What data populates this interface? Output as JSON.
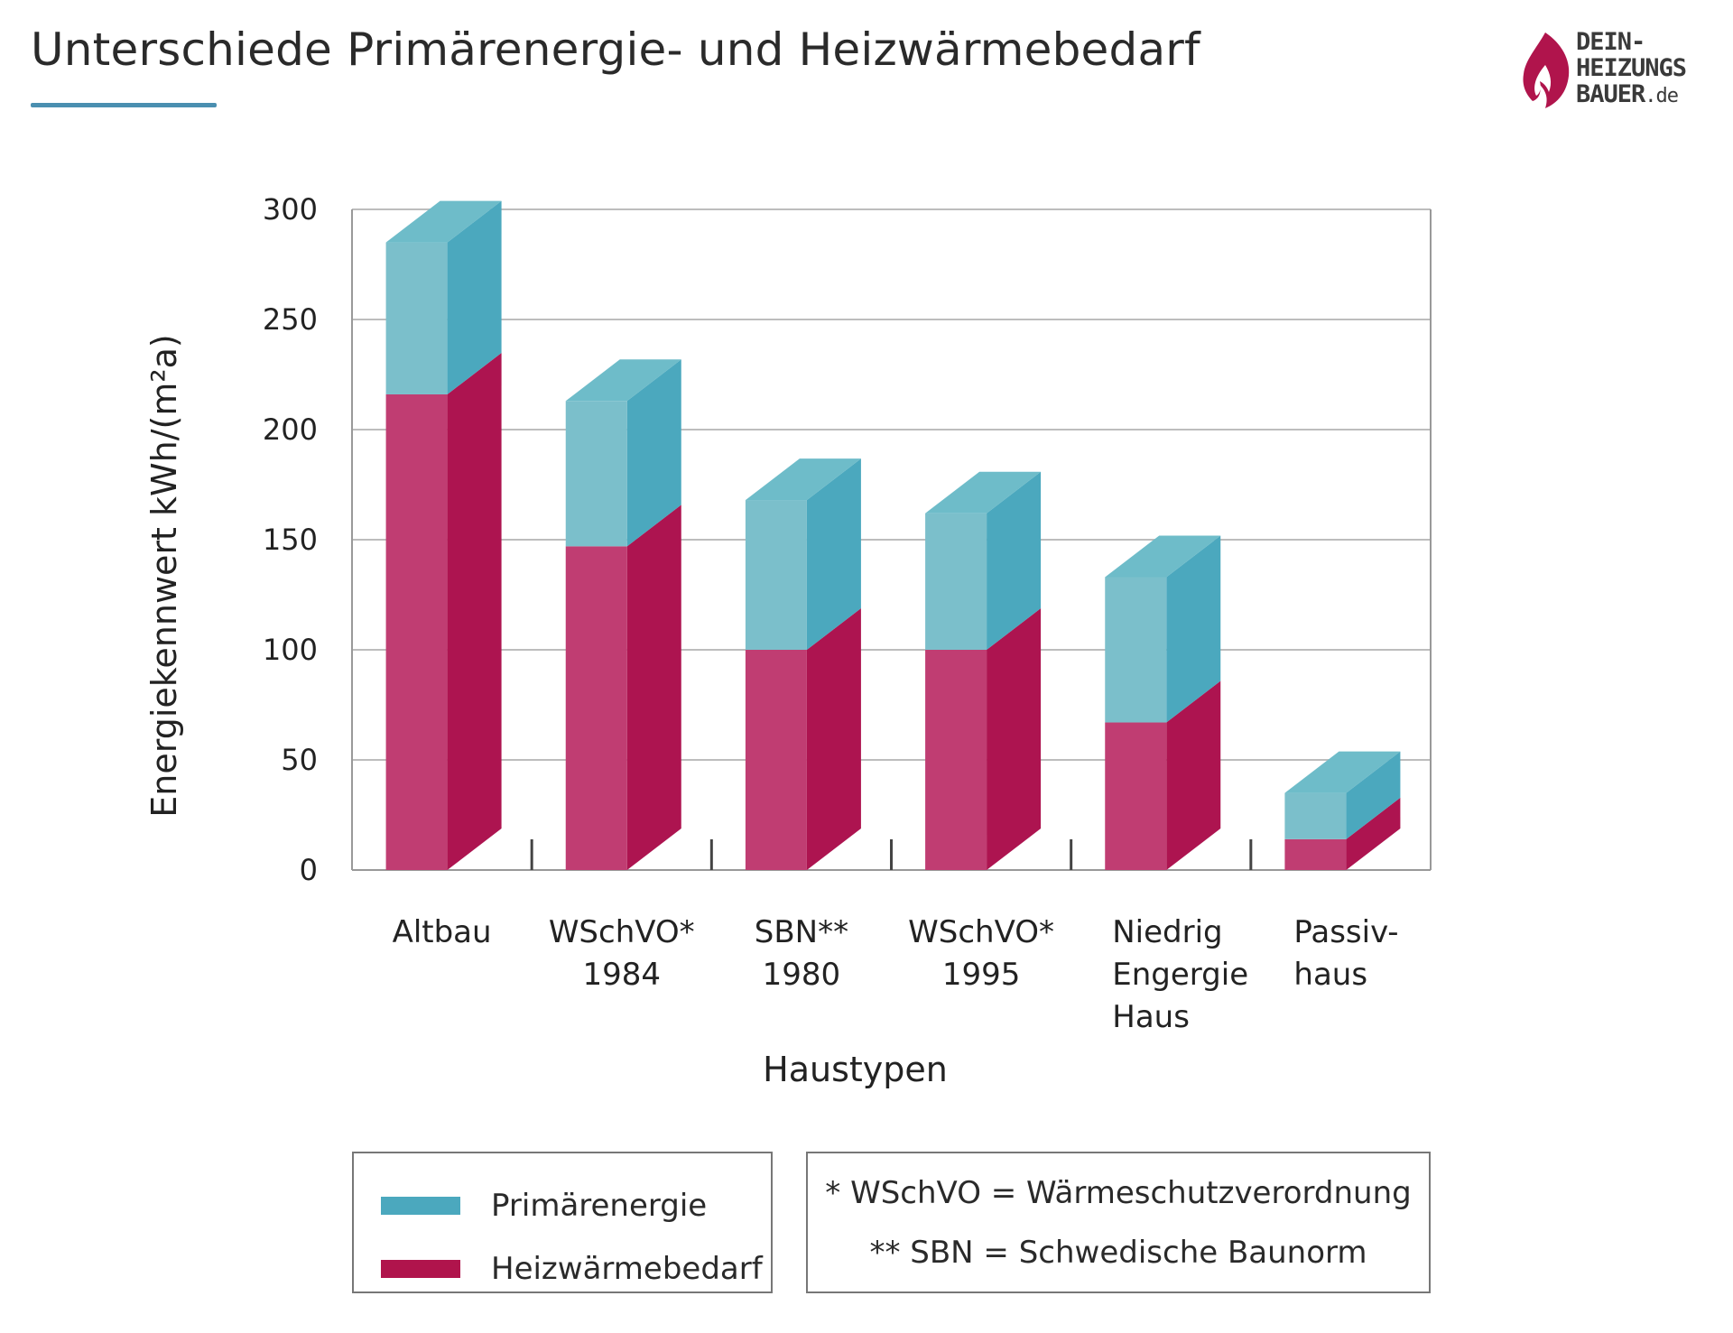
{
  "title": "Unterschiede Primärenergie- und Heizwärmebedarf",
  "logo": {
    "lines": [
      "DEIN-",
      "HEIZUNGS",
      "BAUER"
    ],
    "suffix": ".de",
    "colors": {
      "flame": "#b0144c",
      "text": "#3a3a3a"
    }
  },
  "colors": {
    "primaer_front": "#7bbfcb",
    "primaer_side": "#4ba8be",
    "primaer_top": "#6ebcc9",
    "heiz_front": "#c03d72",
    "heiz_side": "#ad1450",
    "grid": "#bdbdbd",
    "frame": "#999999",
    "accent": "#4a8fb0"
  },
  "chart_data": {
    "type": "bar",
    "stacked": true,
    "style": "3d",
    "xlabel": "Haustypen",
    "ylabel": "Energiekennwert kWh/(m²a)",
    "ylim": [
      0,
      300
    ],
    "yticks": [
      0,
      50,
      100,
      150,
      200,
      250,
      300
    ],
    "grid": true,
    "categories": [
      [
        "Altbau"
      ],
      [
        "WSchVO*",
        "1984"
      ],
      [
        "SBN**",
        "1980"
      ],
      [
        "WSchVO*",
        "1995"
      ],
      [
        "Niedrig",
        "Engergie",
        "Haus"
      ],
      [
        "Passiv-",
        "haus"
      ]
    ],
    "series": [
      {
        "name": "Heizwärmebedarf",
        "values": [
          216,
          147,
          100,
          100,
          67,
          14
        ]
      },
      {
        "name": "Primärenergie",
        "values": [
          69,
          66,
          68,
          62,
          66,
          21
        ]
      }
    ]
  },
  "legend": {
    "items": [
      {
        "label": "Primärenergie",
        "color": "#4ba8be"
      },
      {
        "label": "Heizwärmebedarf",
        "color": "#b0144c"
      }
    ]
  },
  "notes": [
    "* WSchVO = Wärmeschutzverordnung",
    "** SBN = Schwedische Baunorm"
  ]
}
